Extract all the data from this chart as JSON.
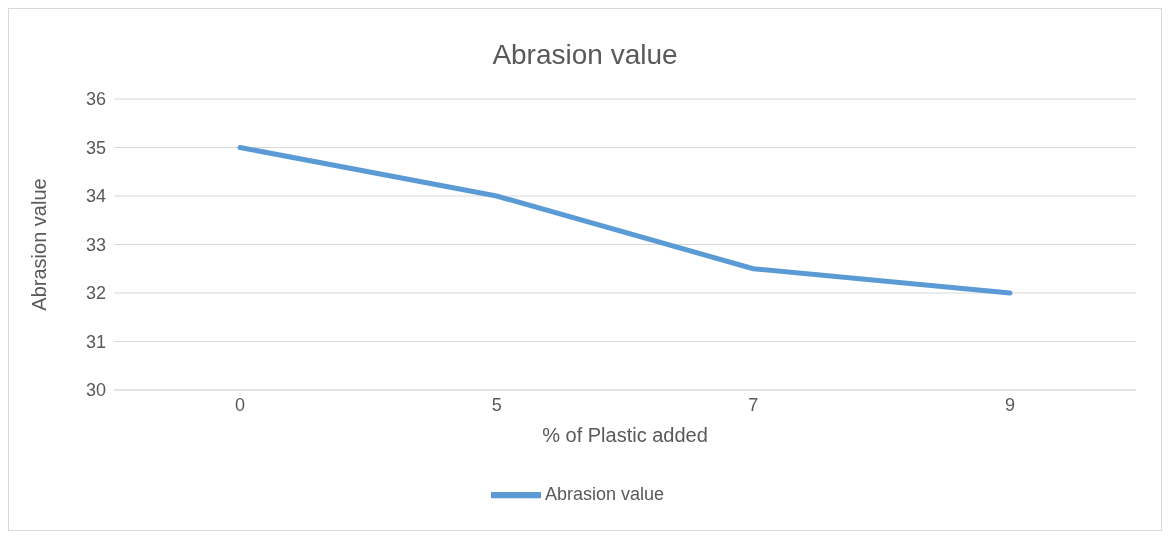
{
  "chart_data": {
    "type": "line",
    "title": "Abrasion value",
    "xlabel": "% of Plastic added",
    "ylabel": "Abrasion value",
    "categories": [
      "0",
      "5",
      "7",
      "9"
    ],
    "series": [
      {
        "name": "Abrasion value",
        "color": "#5b9bd5",
        "values": [
          35,
          34,
          32.5,
          32
        ]
      }
    ],
    "ylim": [
      30,
      36
    ],
    "yticks": [
      30,
      31,
      32,
      33,
      34,
      35,
      36
    ],
    "grid": "y",
    "legend": "bottom",
    "marker": "none",
    "line_style": "solid"
  }
}
